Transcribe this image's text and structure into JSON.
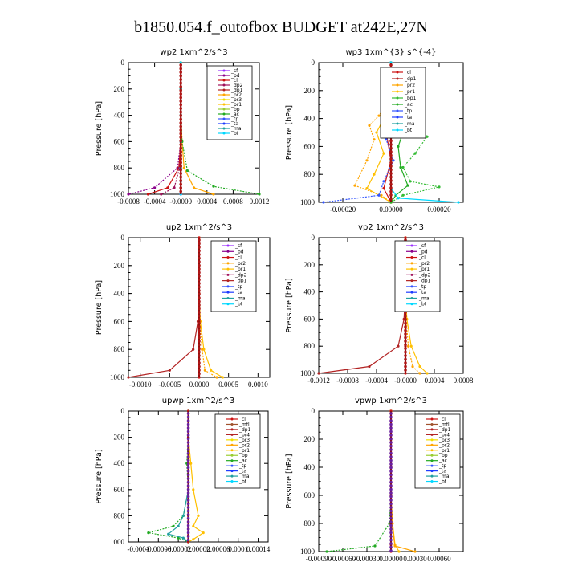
{
  "title": "b1850.054.f_outofbox  BUDGET at242E,27N",
  "colors": {
    "sf": "#9b30ff",
    "pd": "#8b008b",
    "cl": "#cc1111",
    "dp2": "#a0105a",
    "dp1": "#b22222",
    "pr2": "#ffa500",
    "pr1": "#ffc000",
    "pr3": "#f2e000",
    "pr4": "#b22222",
    "bp": "#9acd32",
    "bp1": "#33bb33",
    "ac": "#22aa22",
    "tp": "#3355ff",
    "ta": "#1e3cff",
    "ma": "#20a0a0",
    "bt": "#00d8ff",
    "mfl": "#a0522d"
  },
  "chart_data": [
    {
      "type": "line",
      "title": "wp2   1xm^2/s^3",
      "ylabel": "Pressure  [hPa]",
      "xlim": [
        -0.0008,
        0.0012
      ],
      "ylim": [
        1000,
        0
      ],
      "xticks": [
        -0.0008,
        -0.0004,
        0.0,
        0.0004,
        0.0008,
        0.0012
      ],
      "xtick_labels": [
        "-0.0008",
        "-0.0004",
        "-0.0000",
        "0.0004",
        "0.0008",
        "0.0012"
      ],
      "yticks": [
        0,
        200,
        400,
        600,
        800,
        1000
      ],
      "legend": [
        "_sf",
        "_pd",
        "_cl",
        "_dp2",
        "_dp1",
        "_pr2",
        "_pr3",
        "_pr1",
        "_bp",
        "_ac",
        "_tp",
        "_ta",
        "_ma",
        "_bt"
      ],
      "series": [
        {
          "name": "_sf",
          "key": "sf",
          "x": [
            0,
            0,
            0,
            0,
            0,
            0,
            0
          ],
          "y": [
            0,
            200,
            400,
            600,
            800,
            900,
            1000
          ]
        },
        {
          "name": "_pd",
          "key": "pd",
          "x": [
            0,
            0,
            0,
            0,
            -5e-05,
            -0.0004,
            -0.0008
          ],
          "y": [
            0,
            200,
            400,
            600,
            800,
            950,
            1000
          ]
        },
        {
          "name": "_cl",
          "key": "cl",
          "x": [
            0,
            0,
            0,
            0,
            -3e-05,
            -0.0002,
            -0.0005
          ],
          "y": [
            0,
            200,
            400,
            600,
            800,
            950,
            1000
          ]
        },
        {
          "name": "_dp2",
          "key": "dp2",
          "x": [
            0,
            0,
            0,
            0,
            -2e-05,
            -0.0001,
            -0.0003
          ],
          "y": [
            0,
            200,
            400,
            600,
            800,
            950,
            1000
          ]
        },
        {
          "name": "_pr2",
          "key": "pr2",
          "x": [
            0,
            0,
            0,
            2e-05,
            5e-05,
            0.0002,
            0.0005
          ],
          "y": [
            0,
            200,
            400,
            600,
            800,
            950,
            1000
          ]
        },
        {
          "name": "_ac",
          "key": "ac",
          "x": [
            0,
            0,
            0,
            2e-05,
            0.0001,
            0.0005,
            0.0012
          ],
          "y": [
            0,
            200,
            400,
            600,
            820,
            940,
            1000
          ]
        },
        {
          "name": "_bt",
          "key": "bt",
          "x": [
            0,
            0,
            0,
            0,
            0,
            0,
            0
          ],
          "y": [
            0,
            200,
            400,
            600,
            800,
            900,
            1000
          ]
        }
      ]
    },
    {
      "type": "line",
      "title": "wp3   1xm^{3} s^{-4}",
      "ylabel": "Pressure  [hPa]",
      "xlim": [
        -0.0003,
        0.0003
      ],
      "ylim": [
        1000,
        0
      ],
      "xticks": [
        -0.0002,
        0.0,
        0.0002
      ],
      "xtick_labels": [
        "-0.00020",
        "0.00000",
        "0.00020"
      ],
      "yticks": [
        0,
        200,
        400,
        600,
        800,
        1000
      ],
      "legend": [
        "_cl",
        "_dp1",
        "_pr2",
        "_pr1",
        "_bp1",
        "_ac",
        "_tp",
        "_ta",
        "_ma",
        "_bt"
      ],
      "series": [
        {
          "name": "_cl",
          "key": "cl",
          "x": [
            0,
            0,
            0,
            -2e-05,
            0,
            -3e-05,
            0
          ],
          "y": [
            0,
            200,
            400,
            500,
            700,
            900,
            1000
          ]
        },
        {
          "name": "_pr2",
          "key": "pr2",
          "x": [
            0,
            0,
            -5e-05,
            -9e-05,
            -7e-05,
            -0.0001,
            -0.00015,
            -4e-05,
            0
          ],
          "y": [
            0,
            250,
            380,
            450,
            550,
            700,
            880,
            950,
            1000
          ]
        },
        {
          "name": "_pr1",
          "key": "pr1",
          "x": [
            0,
            0,
            -3e-05,
            -6e-05,
            -3e-05,
            -7e-05,
            -0.0001,
            0
          ],
          "y": [
            0,
            250,
            400,
            500,
            650,
            800,
            900,
            1000
          ]
        },
        {
          "name": "_bp1",
          "key": "bp1",
          "x": [
            0,
            0,
            5e-05,
            0.0001,
            0.00015,
            0.0001,
            5e-05,
            8e-05,
            0.0002,
            5e-05,
            0
          ],
          "y": [
            0,
            250,
            320,
            400,
            530,
            650,
            750,
            850,
            890,
            950,
            1000
          ]
        },
        {
          "name": "_ac",
          "key": "ac",
          "x": [
            0,
            0,
            3e-05,
            6e-05,
            3e-05,
            4e-05,
            7e-05,
            2e-05,
            0
          ],
          "y": [
            0,
            250,
            350,
            450,
            600,
            750,
            880,
            950,
            1000
          ]
        },
        {
          "name": "_tp",
          "key": "tp",
          "x": [
            0,
            0,
            2e-05,
            -2e-05,
            1e-05,
            -3e-05,
            -5e-05,
            -0.00028
          ],
          "y": [
            0,
            250,
            400,
            550,
            700,
            850,
            950,
            1000
          ]
        },
        {
          "name": "_bt",
          "key": "bt",
          "x": [
            0,
            0,
            0,
            0,
            0,
            3e-05,
            0.00028
          ],
          "y": [
            0,
            250,
            500,
            700,
            900,
            970,
            1000
          ]
        }
      ]
    },
    {
      "type": "line",
      "title": "up2   1xm^2/s^3",
      "ylabel": "Pressure  [hPa]",
      "xlim": [
        -0.0012,
        0.0012
      ],
      "ylim": [
        1000,
        0
      ],
      "xticks": [
        -0.001,
        -0.0005,
        0.0,
        0.0005,
        0.001
      ],
      "xtick_labels": [
        "-0.0010",
        "-0.0005",
        "0.0000",
        "0.0005",
        "0.0010"
      ],
      "yticks": [
        0,
        200,
        400,
        600,
        800,
        1000
      ],
      "legend": [
        "_sf",
        "_pd",
        "_cl",
        "_pr2",
        "_pr1",
        "_dp2",
        "_dp1",
        "_tp",
        "_ta",
        "_ma",
        "_bt"
      ],
      "series": [
        {
          "name": "_pr1",
          "key": "pr1",
          "x": [
            0,
            0,
            0,
            2e-05,
            8e-05,
            0.0002,
            0.0004
          ],
          "y": [
            0,
            200,
            400,
            600,
            800,
            950,
            1000
          ]
        },
        {
          "name": "_pr2",
          "key": "pr2",
          "x": [
            0,
            0,
            0,
            1e-05,
            5e-05,
            0.0001,
            0.0003
          ],
          "y": [
            0,
            200,
            400,
            600,
            800,
            950,
            1000
          ]
        },
        {
          "name": "_dp1",
          "key": "dp1",
          "x": [
            0,
            0,
            0,
            -2e-05,
            -0.0001,
            -0.0005,
            -0.0012
          ],
          "y": [
            0,
            200,
            400,
            600,
            800,
            950,
            1000
          ]
        },
        {
          "name": "_cl",
          "key": "cl",
          "x": [
            0,
            0,
            0,
            0,
            0,
            0,
            0
          ],
          "y": [
            0,
            200,
            400,
            600,
            800,
            950,
            1000
          ]
        }
      ]
    },
    {
      "type": "line",
      "title": "vp2   1xm^2/s^3",
      "ylabel": "Pressure  [hPa]",
      "xlim": [
        -0.0012,
        0.0008
      ],
      "ylim": [
        1000,
        0
      ],
      "xticks": [
        -0.0012,
        -0.0008,
        -0.0004,
        0.0,
        0.0004,
        0.0008
      ],
      "xtick_labels": [
        "-0.0012",
        "-0.0008",
        "-0.0004",
        "-0.0000",
        "0.0004",
        "0.0008"
      ],
      "yticks": [
        0,
        200,
        400,
        600,
        800,
        1000
      ],
      "legend": [
        "_sf",
        "_pd",
        "_cl",
        "_pr2",
        "_pr1",
        "_dp2",
        "_dp1",
        "_tp",
        "_ta",
        "_ma",
        "_bt"
      ],
      "series": [
        {
          "name": "_pr1",
          "key": "pr1",
          "x": [
            0,
            0,
            0,
            2e-05,
            8e-05,
            0.0002,
            0.0003
          ],
          "y": [
            0,
            200,
            400,
            600,
            800,
            950,
            1000
          ]
        },
        {
          "name": "_pr2",
          "key": "pr2",
          "x": [
            0,
            0,
            0,
            1e-05,
            4e-05,
            0.0001,
            0.0002
          ],
          "y": [
            0,
            200,
            400,
            600,
            800,
            950,
            1000
          ]
        },
        {
          "name": "_dp1",
          "key": "dp1",
          "x": [
            0,
            0,
            0,
            -2e-05,
            -0.0001,
            -0.0005,
            -0.0012
          ],
          "y": [
            0,
            200,
            400,
            600,
            800,
            950,
            1000
          ]
        },
        {
          "name": "_cl",
          "key": "cl",
          "x": [
            0,
            0,
            0,
            0,
            0,
            0,
            0
          ],
          "y": [
            0,
            200,
            400,
            600,
            800,
            950,
            1000
          ]
        }
      ]
    },
    {
      "type": "line",
      "title": "upwp   1xm^2/s^3",
      "ylabel": "Pressure  [hPa]",
      "xlim": [
        -0.00012,
        0.00016
      ],
      "ylim": [
        1000,
        0
      ],
      "xticks": [
        -0.0001,
        -6e-05,
        -2e-05,
        2e-05,
        6e-05,
        0.0001,
        0.00014
      ],
      "xtick_labels": [
        "-0.0001",
        "-0.00006",
        "-0.00002",
        "0.00002",
        "0.00006",
        "0.0001",
        "0.00014"
      ],
      "yticks": [
        0,
        200,
        400,
        600,
        800,
        1000
      ],
      "legend": [
        "_cl",
        "_mfl",
        "_dp1",
        "_pr4",
        "_pr3",
        "_pr2",
        "_pr1",
        "_bp",
        "_ac",
        "_tp",
        "_ta",
        "_ma",
        "_bt"
      ],
      "series": [
        {
          "name": "_pr1",
          "key": "pr1",
          "x": [
            0,
            0,
            5e-06,
            1e-05,
            2e-05,
            1e-05,
            3e-05,
            1e-05,
            0
          ],
          "y": [
            0,
            200,
            400,
            600,
            800,
            880,
            930,
            980,
            1000
          ]
        },
        {
          "name": "_ac",
          "key": "ac",
          "x": [
            0,
            0,
            -3e-06,
            0,
            -1e-05,
            -3e-05,
            -8e-05,
            -2e-05,
            0
          ],
          "y": [
            0,
            200,
            400,
            600,
            800,
            880,
            930,
            970,
            1000
          ]
        },
        {
          "name": "_ma",
          "key": "ma",
          "x": [
            0,
            0,
            0,
            0,
            -1e-05,
            -2e-05,
            -4e-05,
            -1e-05,
            0
          ],
          "y": [
            0,
            200,
            400,
            600,
            800,
            880,
            940,
            970,
            1000
          ]
        },
        {
          "name": "_cl",
          "key": "cl",
          "x": [
            0,
            0,
            0,
            0,
            0,
            0,
            0,
            0
          ],
          "y": [
            0,
            200,
            400,
            600,
            800,
            900,
            950,
            1000
          ]
        }
      ]
    },
    {
      "type": "line",
      "title": "vpwp   1xm^2/s^3",
      "ylabel": "Pressure  [hPa]",
      "xlim": [
        -0.0009,
        0.0009
      ],
      "ylim": [
        1000,
        0
      ],
      "xticks": [
        -0.0009,
        -0.0006,
        -0.0003,
        0.0,
        0.0003,
        0.0006
      ],
      "xtick_labels": [
        "-0.00090",
        "-0.00060",
        "-0.00030",
        "0.00000",
        "0.00030",
        "0.00060"
      ],
      "yticks": [
        0,
        200,
        400,
        600,
        800,
        1000
      ],
      "legend": [
        "_cl",
        "_mfl",
        "_dp1",
        "_pr4",
        "_pr3",
        "_pr2",
        "_pr1",
        "_bp",
        "_ac",
        "_tp",
        "_ta",
        "_ma",
        "_bt"
      ],
      "series": [
        {
          "name": "_pr1",
          "key": "pr1",
          "x": [
            0,
            0,
            0,
            0,
            2e-05,
            5e-05,
            0.0001
          ],
          "y": [
            0,
            200,
            400,
            600,
            800,
            950,
            1000
          ]
        },
        {
          "name": "_ac",
          "key": "ac",
          "x": [
            0,
            0,
            0,
            0,
            -2e-05,
            -0.0002,
            -0.0008
          ],
          "y": [
            0,
            200,
            400,
            600,
            800,
            960,
            1000
          ]
        },
        {
          "name": "_pr2",
          "key": "pr2",
          "x": [
            0,
            0,
            0,
            0,
            1e-05,
            5e-05,
            0.0003
          ],
          "y": [
            0,
            200,
            400,
            600,
            800,
            960,
            1000
          ]
        },
        {
          "name": "_cl",
          "key": "cl",
          "x": [
            0,
            0,
            0,
            0,
            0,
            0,
            0
          ],
          "y": [
            0,
            200,
            400,
            600,
            800,
            950,
            1000
          ]
        }
      ]
    }
  ]
}
